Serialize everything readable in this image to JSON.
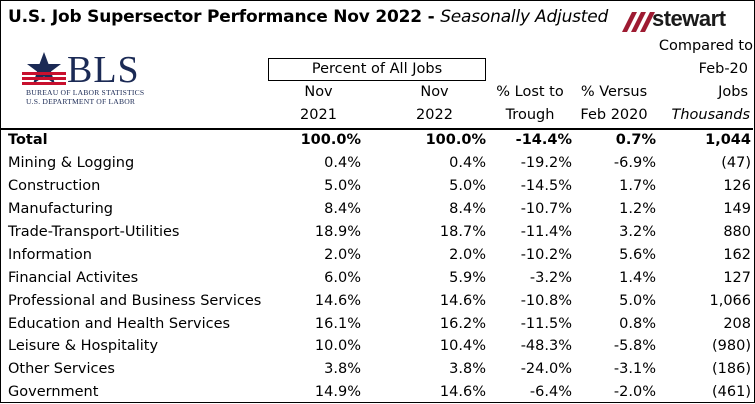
{
  "header": {
    "title_main": "U.S. Job Supersector Performance Nov 2022 - ",
    "title_sub": "Seasonally Adjusted",
    "stewart_logo_text": "stewart",
    "bls_logo": {
      "wordmark": "BLS",
      "line1": "BUREAU OF LABOR STATISTICS",
      "line2": "U.S. DEPARTMENT OF LABOR"
    }
  },
  "columns": {
    "group_label": "Percent of All Jobs",
    "c1": [
      "Nov",
      "2021"
    ],
    "c2": [
      "Nov",
      "2022"
    ],
    "c3": [
      "% Lost to",
      "Trough"
    ],
    "c4": [
      "% Versus",
      "Feb 2020"
    ],
    "c5": [
      "Compared to",
      "Feb-20",
      "Jobs",
      "Thousands"
    ]
  },
  "rows": [
    {
      "label": "Total",
      "nov2021": "100.0%",
      "nov2022": "100.0%",
      "lost": "-14.4%",
      "versus": "0.7%",
      "jobs": "1,044",
      "bold": true
    },
    {
      "label": "Mining & Logging",
      "nov2021": "0.4%",
      "nov2022": "0.4%",
      "lost": "-19.2%",
      "versus": "-6.9%",
      "jobs": "(47)"
    },
    {
      "label": "Construction",
      "nov2021": "5.0%",
      "nov2022": "5.0%",
      "lost": "-14.5%",
      "versus": "1.7%",
      "jobs": "126"
    },
    {
      "label": "Manufacturing",
      "nov2021": "8.4%",
      "nov2022": "8.4%",
      "lost": "-10.7%",
      "versus": "1.2%",
      "jobs": "149"
    },
    {
      "label": "Trade-Transport-Utilities",
      "nov2021": "18.9%",
      "nov2022": "18.7%",
      "lost": "-11.4%",
      "versus": "3.2%",
      "jobs": "880"
    },
    {
      "label": "Information",
      "nov2021": "2.0%",
      "nov2022": "2.0%",
      "lost": "-10.2%",
      "versus": "5.6%",
      "jobs": "162"
    },
    {
      "label": "Financial Activites",
      "nov2021": "6.0%",
      "nov2022": "5.9%",
      "lost": "-3.2%",
      "versus": "1.4%",
      "jobs": "127"
    },
    {
      "label": "Professional and Business Services",
      "nov2021": "14.6%",
      "nov2022": "14.6%",
      "lost": "-10.8%",
      "versus": "5.0%",
      "jobs": "1,066"
    },
    {
      "label": "Education and Health Services",
      "nov2021": "16.1%",
      "nov2022": "16.2%",
      "lost": "-11.5%",
      "versus": "0.8%",
      "jobs": "208"
    },
    {
      "label": "Leisure & Hospitality",
      "nov2021": "10.0%",
      "nov2022": "10.4%",
      "lost": "-48.3%",
      "versus": "-5.8%",
      "jobs": "(980)"
    },
    {
      "label": "Other Services",
      "nov2021": "3.8%",
      "nov2022": "3.8%",
      "lost": "-24.0%",
      "versus": "-3.1%",
      "jobs": "(186)"
    },
    {
      "label": "Government",
      "nov2021": "14.9%",
      "nov2022": "14.6%",
      "lost": "-6.4%",
      "versus": "-2.0%",
      "jobs": "(461)"
    }
  ],
  "colors": {
    "stewart_red": "#9e1b32",
    "bls_navy": "#1b2a55",
    "bls_red": "#c8102e"
  }
}
